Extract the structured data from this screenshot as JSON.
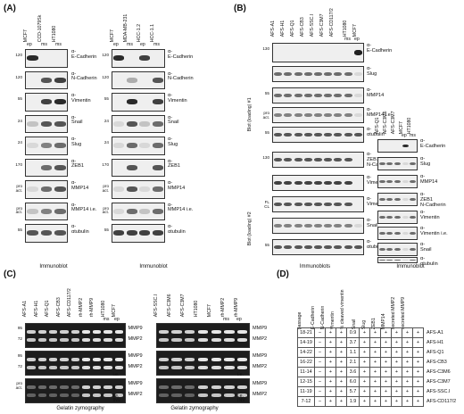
{
  "panels": {
    "A": {
      "letter": "(A)",
      "caption": "Immunoblot",
      "left": {
        "lanes": [
          "MCF7",
          "CCD-1079Sk",
          "HT1080"
        ],
        "subtags": [
          "ep",
          "ms",
          "ms"
        ],
        "rows": [
          {
            "kda": "120",
            "label": "α-\nE-Cadherin"
          },
          {
            "kda": "120",
            "label": "α-\nN-Cadherin"
          },
          {
            "kda": "55",
            "label": "α-\nVimentin"
          },
          {
            "kda": "24",
            "label": "α-\nSnail"
          },
          {
            "kda": "24",
            "label": "α-\nSlug"
          },
          {
            "kda": "170",
            "label": "α-\nZEB1"
          },
          {
            "kda": "pro\nact.",
            "label": "α-\nMMP14"
          },
          {
            "kda": "pro\nact.",
            "label": "α-\nMMP14 i.e."
          },
          {
            "kda": "55",
            "label": "α-\nαtubulin"
          }
        ]
      },
      "right": {
        "lanes": [
          "MCF7",
          "MDA-MB-231",
          "HCC-1.2",
          "HCC-1.1"
        ],
        "subtags": [
          "ep",
          "ms",
          "ep",
          "ms"
        ]
      }
    },
    "B": {
      "letter": "(B)",
      "caption_left": "Immunoblots",
      "caption_right": "Immunoblot",
      "side_label_1": "Blot (loading) #1",
      "side_label_2": "Blot (loading) #2",
      "lanes": [
        "AFS-A1",
        "AFS-H1",
        "AFS-Q1",
        "AFS-CB3",
        "AFS-SSC.I",
        "AFS-C3M7",
        "AFS-CD117/2",
        "HT1080",
        "MCF7"
      ],
      "subtags": [
        "ms",
        "ep"
      ],
      "rows": [
        {
          "kda": "130",
          "label": "α-\nE-Cadherin"
        },
        {
          "kda": "",
          "label": "α-\nSlug"
        },
        {
          "kda": "55",
          "label": "α-\nMMP14"
        },
        {
          "kda": "pro\nact.",
          "label": "α-\nMMP14 i.e."
        },
        {
          "kda": "55",
          "label": "α-\nαtubulin"
        },
        {
          "kda": "130",
          "label": "α-\nZEB1\nN-Cadherin"
        },
        {
          "kda": "",
          "label": "α-\nVimentin"
        },
        {
          "kda": "FL\nCL",
          "label": "α-\nVimentin i.e."
        },
        {
          "kda": "",
          "label": "α-\nSnail"
        },
        {
          "kda": "55",
          "label": "α-\nαtubulin"
        }
      ],
      "right_lanes": [
        "AFS-Q1",
        "AFS-C3M6",
        "AFS-C3M7",
        "MCF7",
        "HT1080"
      ],
      "right_subtags": [
        "ep",
        "ms"
      ],
      "right_rows": [
        {
          "label": "α-\nE-Cadherin"
        },
        {
          "label": "α-\nSlug"
        },
        {
          "label": "α-\nMMP14"
        },
        {
          "label": "α-\nZEB1\nN-Cadherin"
        },
        {
          "label": "α-\nVimentin"
        },
        {
          "label": "α-\nVimentin i.e."
        },
        {
          "label": "α-\nSnail"
        },
        {
          "label": "α-\nαtubulin"
        }
      ]
    },
    "C": {
      "letter": "(C)",
      "caption": "Gelatin zymography",
      "left_lanes": [
        "AFS-A1",
        "AFS-H1",
        "AFS-Q1",
        "AFS-CB3",
        "AFS-CD117/2",
        "rh-MMP2",
        "rh-MMP9",
        "HT1080",
        "MCF7"
      ],
      "right_lanes": [
        "AFS-SSC.I",
        "AFS-C3M6",
        "AFS-C3M7",
        "HT1080",
        "MCF7",
        "rh-MMP2",
        "rh-MMP9"
      ],
      "subtags": [
        "ms",
        "ep"
      ],
      "markers": [
        "MMP9",
        "MMP2",
        "MMP9",
        "MMP2",
        "MMP9",
        "MMP2"
      ],
      "kda": [
        "95",
        "72",
        "95",
        "72",
        "pro\nact."
      ],
      "ie": "i.e.",
      "inv": "i.e.\nINV"
    },
    "D": {
      "letter": "(D)",
      "headers": [
        "passage",
        "E-Cadherin",
        "N-Cadherin",
        "Vimentin",
        "% cleaved vimentin",
        "Snail",
        "Slug",
        "ZEB1",
        "MMP14",
        "secreted MMP2",
        "secreted MMP9"
      ],
      "rows": [
        {
          "name": "AFS-A1",
          "cells": [
            "18-21",
            "–",
            "+",
            "+",
            "0.9",
            "+",
            "+",
            "+",
            "+",
            "+",
            "+"
          ]
        },
        {
          "name": "AFS-H1",
          "cells": [
            "14-19",
            "–",
            "+",
            "+",
            "3.7",
            "+",
            "+",
            "+",
            "+",
            "+",
            "+"
          ]
        },
        {
          "name": "AFS-Q1",
          "cells": [
            "14-22",
            "–",
            "+",
            "+",
            "1.1",
            "+",
            "+",
            "+",
            "+",
            "+",
            "+"
          ]
        },
        {
          "name": "AFS-CB3",
          "cells": [
            "16-22",
            "–",
            "+",
            "+",
            "2.1",
            "+",
            "+",
            "+",
            "+",
            "+",
            "+"
          ]
        },
        {
          "name": "AFS-C3M6",
          "cells": [
            "11-14",
            "–",
            "+",
            "+",
            "3.6",
            "+",
            "+",
            "+",
            "+",
            "+",
            "+"
          ]
        },
        {
          "name": "AFS-C3M7",
          "cells": [
            "12-15",
            "–",
            "+",
            "+",
            "6.0",
            "+",
            "+",
            "+",
            "+",
            "+",
            "+"
          ]
        },
        {
          "name": "AFS-SSC.I",
          "cells": [
            "11-19",
            "–",
            "+",
            "+",
            "5.7",
            "+",
            "+",
            "+",
            "+",
            "+",
            "+"
          ]
        },
        {
          "name": "AFS-CD117/2",
          "cells": [
            "7-12",
            "–",
            "+",
            "+",
            "1.9",
            "+",
            "+",
            "+",
            "+",
            "+",
            "+"
          ]
        }
      ]
    }
  }
}
